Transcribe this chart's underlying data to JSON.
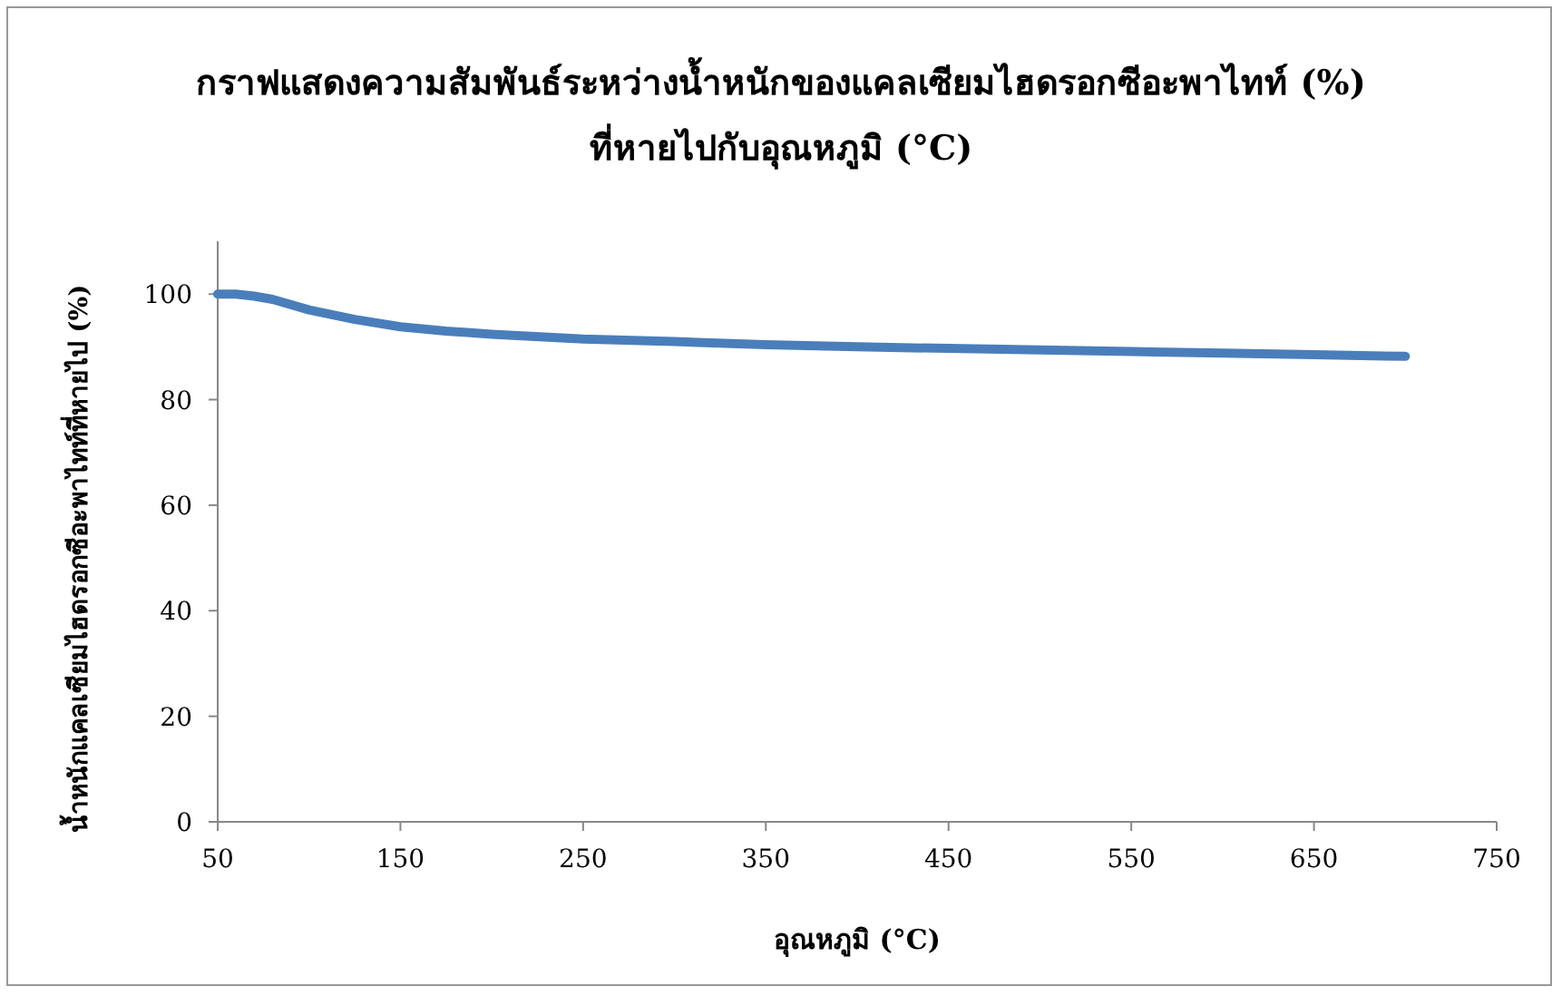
{
  "chart_data": {
    "type": "line",
    "title": "กราฟแสดงความสัมพันธ์ระหว่างน้ำหนักของแคลเซียมไฮดรอกซีอะพาไทท์ (%)\nที่หายไปกับอุณหภูมิ (°C)",
    "xlabel": "อุณหภูมิ (°C)",
    "ylabel": "น้ำหนักแคลเซียมไฮดรอกซีอะพาไทท์ที่หายไป (%)",
    "x": [
      50,
      60,
      70,
      80,
      100,
      125,
      150,
      175,
      200,
      250,
      300,
      350,
      400,
      450,
      500,
      550,
      600,
      650,
      700
    ],
    "series": [
      {
        "color": "#4a7ebb",
        "values": [
          100,
          100,
          99.6,
          99,
          97,
          95.2,
          93.8,
          93,
          92.4,
          91.5,
          91,
          90.4,
          90,
          89.7,
          89.4,
          89.1,
          88.8,
          88.5,
          88.2
        ]
      }
    ],
    "xlim": [
      50,
      750
    ],
    "xticks": [
      50,
      150,
      250,
      350,
      450,
      550,
      650,
      750
    ],
    "ylim": [
      0,
      110
    ],
    "yticks": [
      0,
      20,
      40,
      60,
      80,
      100
    ]
  }
}
